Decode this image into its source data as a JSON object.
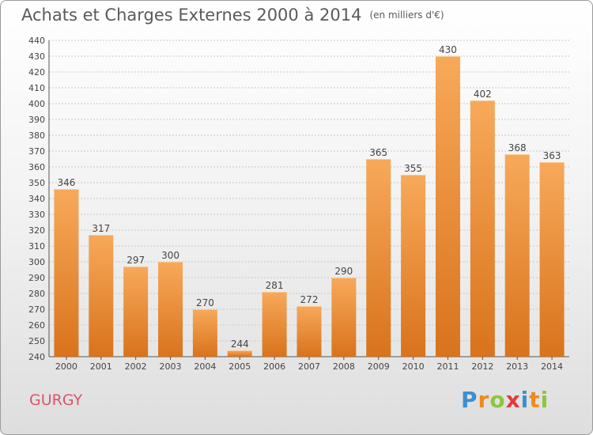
{
  "title": "Achats et Charges Externes 2000 à 2014",
  "unit": "(en milliers d'€)",
  "city": "GURGY",
  "logo": {
    "text": "Proxiti",
    "colors": [
      "#3b8fd3",
      "#f08a1d",
      "#8cc63f",
      "#e23b3b",
      "#3b8fd3",
      "#f08a1d",
      "#8cc63f"
    ]
  },
  "colors": {
    "bar_top": "#f7a95a",
    "bar_bottom": "#d9731c",
    "grid": "#c8c8c8",
    "text": "#444444"
  },
  "chart_data": {
    "type": "bar",
    "title": "Achats et Charges Externes 2000 à 2014",
    "subtitle": "(en milliers d'€)",
    "categories": [
      "2000",
      "2001",
      "2002",
      "2003",
      "2004",
      "2005",
      "2006",
      "2007",
      "2008",
      "2009",
      "2010",
      "2011",
      "2012",
      "2013",
      "2014"
    ],
    "values": [
      346,
      317,
      297,
      300,
      270,
      244,
      281,
      272,
      290,
      365,
      355,
      430,
      402,
      368,
      363
    ],
    "xlabel": "",
    "ylabel": "",
    "ylim": [
      240,
      440
    ],
    "yticks": [
      240,
      250,
      260,
      270,
      280,
      290,
      300,
      310,
      320,
      330,
      340,
      350,
      360,
      370,
      380,
      390,
      400,
      410,
      420,
      430,
      440
    ],
    "grid": true,
    "data_labels": true
  }
}
